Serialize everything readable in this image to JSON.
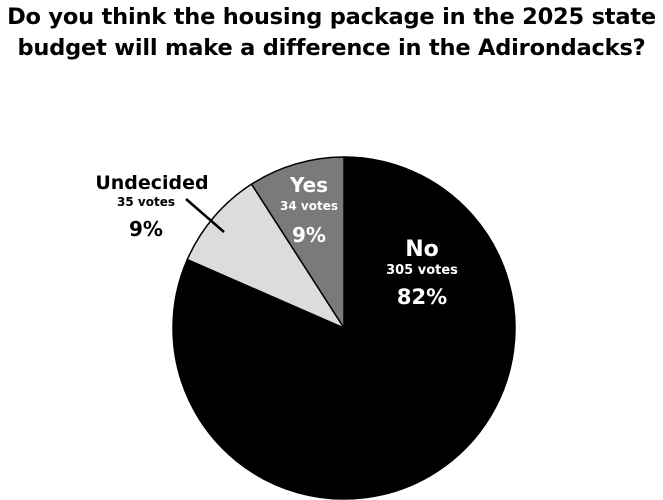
{
  "title_lines": [
    "Do you think the housing package in the 2025 state",
    "budget will make a difference in the Adirondacks?"
  ],
  "chart_data": {
    "type": "pie",
    "title": "Do you think the housing package in the 2025 state budget will make a difference in the Adirondacks?",
    "slices": [
      {
        "label": "No",
        "votes": 305,
        "votes_label": "305 votes",
        "percent_label": "82%",
        "color": "#000000",
        "text_color": "#ffffff"
      },
      {
        "label": "Undecided",
        "votes": 35,
        "votes_label": "35 votes",
        "percent_label": "9%",
        "color": "#dcdcdc",
        "text_color": "#000000"
      },
      {
        "label": "Yes",
        "votes": 34,
        "votes_label": "34 votes",
        "percent_label": "9%",
        "color": "#7a7a7a",
        "text_color": "#ffffff"
      }
    ],
    "legend": "none",
    "slice_outline_color": "#000000"
  }
}
